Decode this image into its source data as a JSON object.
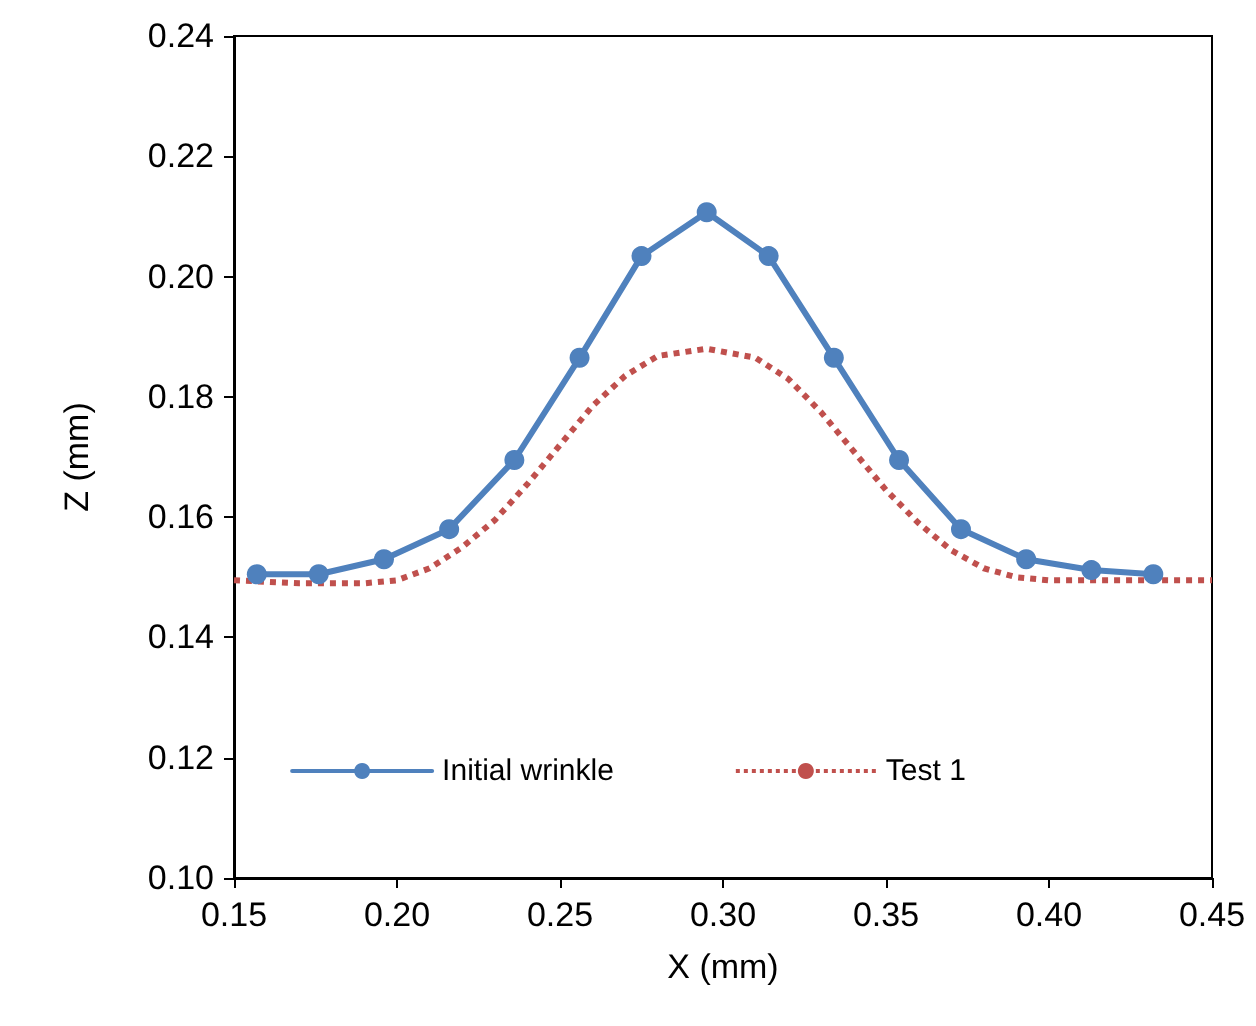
{
  "chart_data": {
    "type": "line",
    "xlabel": "X (mm)",
    "ylabel": "Z (mm)",
    "xlim": [
      0.15,
      0.45
    ],
    "xticks": [
      {
        "value": 0.15,
        "label": "0.15"
      },
      {
        "value": 0.2,
        "label": "0.20"
      },
      {
        "value": 0.25,
        "label": "0.25"
      },
      {
        "value": 0.3,
        "label": "0.30"
      },
      {
        "value": 0.35,
        "label": "0.35"
      },
      {
        "value": 0.4,
        "label": "0.40"
      },
      {
        "value": 0.45,
        "label": "0.45"
      }
    ],
    "ylim": [
      0.1,
      0.24
    ],
    "yticks": [
      {
        "value": 0.1,
        "label": "0.10"
      },
      {
        "value": 0.12,
        "label": "0.12"
      },
      {
        "value": 0.14,
        "label": "0.14"
      },
      {
        "value": 0.16,
        "label": "0.16"
      },
      {
        "value": 0.18,
        "label": "0.18"
      },
      {
        "value": 0.2,
        "label": "0.20"
      },
      {
        "value": 0.22,
        "label": "0.22"
      },
      {
        "value": 0.24,
        "label": "0.24"
      }
    ],
    "grid": false,
    "legend": "bottom",
    "series": [
      {
        "name": "Initial wrinkle",
        "color": "#4f81bd",
        "marker": "circle",
        "line_style": "solid",
        "x": [
          0.157,
          0.176,
          0.196,
          0.216,
          0.236,
          0.256,
          0.275,
          0.295,
          0.314,
          0.334,
          0.354,
          0.373,
          0.393,
          0.413,
          0.432
        ],
        "values": [
          0.1505,
          0.1505,
          0.153,
          0.158,
          0.1695,
          0.1865,
          0.2034,
          0.2107,
          0.2034,
          0.1865,
          0.1695,
          0.158,
          0.153,
          0.1512,
          0.1505
        ]
      },
      {
        "name": "Test 1",
        "color": "#c0504d",
        "marker": "none",
        "line_style": "dotted",
        "x": [
          0.15,
          0.17,
          0.19,
          0.2,
          0.21,
          0.22,
          0.23,
          0.24,
          0.25,
          0.26,
          0.27,
          0.28,
          0.295,
          0.31,
          0.32,
          0.33,
          0.34,
          0.35,
          0.36,
          0.37,
          0.38,
          0.39,
          0.4,
          0.42,
          0.45
        ],
        "values": [
          0.1495,
          0.149,
          0.149,
          0.1495,
          0.1515,
          0.155,
          0.1595,
          0.1655,
          0.172,
          0.1785,
          0.1835,
          0.1868,
          0.188,
          0.1865,
          0.183,
          0.1775,
          0.171,
          0.1645,
          0.159,
          0.1545,
          0.1515,
          0.15,
          0.1495,
          0.1495,
          0.1495
        ]
      }
    ]
  }
}
